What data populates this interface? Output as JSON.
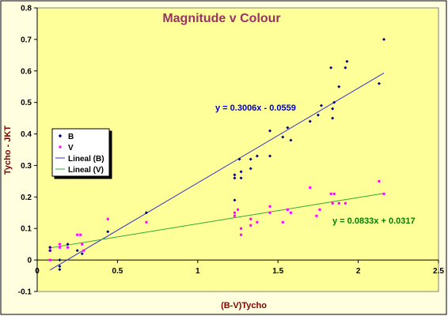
{
  "chart_data": {
    "type": "scatter",
    "title": "Magnitude v Colour",
    "xlabel": "(B-V)Tycho",
    "ylabel": "Tycho - JKT",
    "xlim": [
      0,
      2.5
    ],
    "ylim": [
      -0.1,
      0.8
    ],
    "x_ticks": [
      0,
      0.5,
      1,
      1.5,
      2,
      2.5
    ],
    "y_ticks": [
      -0.1,
      0,
      0.1,
      0.2,
      0.3,
      0.4,
      0.5,
      0.6,
      0.7,
      0.8
    ],
    "x_tick_labels": [
      "0",
      "0.5",
      "1",
      "1.5",
      "2",
      "2.5"
    ],
    "y_tick_labels": [
      "-0.1",
      "0",
      "0.1",
      "0.2",
      "0.3",
      "0.4",
      "0.5",
      "0.6",
      "0.7",
      "0.8"
    ],
    "grid": false,
    "legend_position": "left",
    "colors": {
      "plot_bg": "#ffff99",
      "frame_bg": "#ffffe0",
      "title": "#993366",
      "axis_label": "#800000",
      "B": "#000080",
      "V": "#ff00ff",
      "fit_B": "#3333cc",
      "fit_V": "#33aa33",
      "eq_B": "#0000cc",
      "eq_V": "#008000"
    },
    "series": [
      {
        "name": "B",
        "marker": "diamond",
        "points": [
          [
            0.08,
            0.04
          ],
          [
            0.08,
            0.03
          ],
          [
            0.14,
            -0.03
          ],
          [
            0.14,
            -0.02
          ],
          [
            0.14,
            0.0
          ],
          [
            0.19,
            0.05
          ],
          [
            0.25,
            0.03
          ],
          [
            0.28,
            0.02
          ],
          [
            0.44,
            0.09
          ],
          [
            0.68,
            0.15
          ],
          [
            1.23,
            0.27
          ],
          [
            1.23,
            0.26
          ],
          [
            1.23,
            0.19
          ],
          [
            1.26,
            0.32
          ],
          [
            1.27,
            0.28
          ],
          [
            1.27,
            0.26
          ],
          [
            1.33,
            0.29
          ],
          [
            1.33,
            0.32
          ],
          [
            1.37,
            0.33
          ],
          [
            1.45,
            0.41
          ],
          [
            1.45,
            0.33
          ],
          [
            1.53,
            0.39
          ],
          [
            1.56,
            0.42
          ],
          [
            1.58,
            0.38
          ],
          [
            1.7,
            0.44
          ],
          [
            1.75,
            0.46
          ],
          [
            1.77,
            0.49
          ],
          [
            1.83,
            0.61
          ],
          [
            1.84,
            0.48
          ],
          [
            1.84,
            0.45
          ],
          [
            1.85,
            0.5
          ],
          [
            1.88,
            0.55
          ],
          [
            1.92,
            0.61
          ],
          [
            1.93,
            0.63
          ],
          [
            2.13,
            0.56
          ],
          [
            2.16,
            0.7
          ]
        ]
      },
      {
        "name": "V",
        "marker": "square",
        "points": [
          [
            0.08,
            0.04
          ],
          [
            0.08,
            0.03
          ],
          [
            0.08,
            0.0
          ],
          [
            0.14,
            0.04
          ],
          [
            0.14,
            0.05
          ],
          [
            0.19,
            0.04
          ],
          [
            0.25,
            0.08
          ],
          [
            0.27,
            0.08
          ],
          [
            0.28,
            0.05
          ],
          [
            0.29,
            0.03
          ],
          [
            0.44,
            0.13
          ],
          [
            0.68,
            0.12
          ],
          [
            1.23,
            0.15
          ],
          [
            1.23,
            0.14
          ],
          [
            1.25,
            0.16
          ],
          [
            1.27,
            0.1
          ],
          [
            1.27,
            0.08
          ],
          [
            1.33,
            0.13
          ],
          [
            1.33,
            0.11
          ],
          [
            1.37,
            0.12
          ],
          [
            1.45,
            0.17
          ],
          [
            1.45,
            0.15
          ],
          [
            1.53,
            0.12
          ],
          [
            1.56,
            0.16
          ],
          [
            1.58,
            0.15
          ],
          [
            1.7,
            0.23
          ],
          [
            1.74,
            0.14
          ],
          [
            1.76,
            0.16
          ],
          [
            1.83,
            0.21
          ],
          [
            1.84,
            0.18
          ],
          [
            1.85,
            0.21
          ],
          [
            1.88,
            0.18
          ],
          [
            1.92,
            0.18
          ],
          [
            2.13,
            0.25
          ],
          [
            2.16,
            0.21
          ]
        ]
      },
      {
        "name": "Lineal (B)",
        "type": "line",
        "slope": 0.3006,
        "intercept": -0.0559,
        "x_range": [
          0.08,
          2.16
        ],
        "equation": "y = 0.3006x - 0.0559"
      },
      {
        "name": "Lineal (V)",
        "type": "line",
        "slope": 0.0833,
        "intercept": 0.0317,
        "x_range": [
          0.08,
          2.16
        ],
        "equation": "y = 0.0833x + 0.0317"
      }
    ]
  }
}
